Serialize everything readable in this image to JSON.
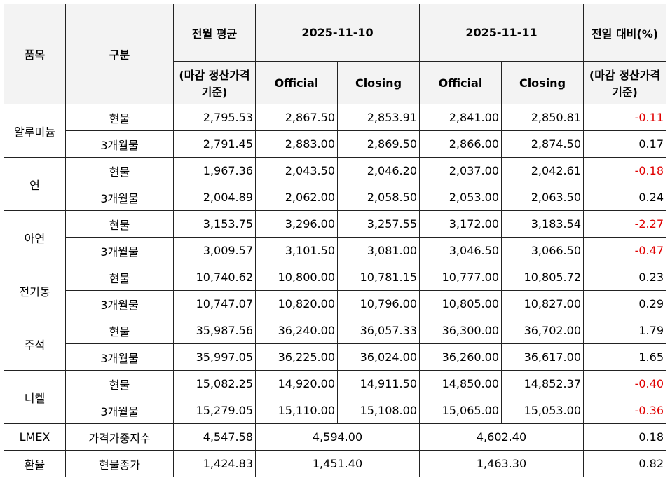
{
  "header": {
    "row1": [
      "품목",
      "구분",
      "전월 평균",
      "2025-11-10",
      "2025-11-11",
      "전일 대비(%)"
    ],
    "row2": [
      "(마감 정산가격 기준)",
      "Official",
      "Closing",
      "Official",
      "Closing",
      "(마감 정산가격 기준)"
    ]
  },
  "table": {
    "groups": [
      {
        "item": "알루미늄",
        "rows": [
          [
            "현물",
            "2,795.53",
            "2,867.50",
            "2,853.91",
            "2,841.00",
            "2,850.81",
            "-0.11"
          ],
          [
            "3개월물",
            "2,791.45",
            "2,883.00",
            "2,869.50",
            "2,866.00",
            "2,874.50",
            "0.17"
          ]
        ]
      },
      {
        "item": "연",
        "rows": [
          [
            "현물",
            "1,967.36",
            "2,043.50",
            "2,046.20",
            "2,037.00",
            "2,042.61",
            "-0.18"
          ],
          [
            "3개월물",
            "2,004.89",
            "2,062.00",
            "2,058.50",
            "2,053.00",
            "2,063.50",
            "0.24"
          ]
        ]
      },
      {
        "item": "아연",
        "rows": [
          [
            "현물",
            "3,153.75",
            "3,296.00",
            "3,257.55",
            "3,172.00",
            "3,183.54",
            "-2.27"
          ],
          [
            "3개월물",
            "3,009.57",
            "3,101.50",
            "3,081.00",
            "3,046.50",
            "3,066.50",
            "-0.47"
          ]
        ]
      },
      {
        "item": "전기동",
        "rows": [
          [
            "현물",
            "10,740.62",
            "10,800.00",
            "10,781.15",
            "10,777.00",
            "10,805.72",
            "0.23"
          ],
          [
            "3개월물",
            "10,747.07",
            "10,820.00",
            "10,796.00",
            "10,805.00",
            "10,827.00",
            "0.29"
          ]
        ]
      },
      {
        "item": "주석",
        "rows": [
          [
            "현물",
            "35,987.56",
            "36,240.00",
            "36,057.33",
            "36,300.00",
            "36,702.00",
            "1.79"
          ],
          [
            "3개월물",
            "35,997.05",
            "36,225.00",
            "36,024.00",
            "36,260.00",
            "36,617.00",
            "1.65"
          ]
        ]
      },
      {
        "item": "니켈",
        "rows": [
          [
            "현물",
            "15,082.25",
            "14,920.00",
            "14,911.50",
            "14,850.00",
            "14,852.37",
            "-0.40"
          ],
          [
            "3개월물",
            "15,279.05",
            "15,110.00",
            "15,108.00",
            "15,065.00",
            "15,053.00",
            "-0.36"
          ]
        ]
      }
    ],
    "footer_rows": [
      {
        "item": "LMEX",
        "sub": "가격가중지수",
        "values": [
          "4,547.58",
          "4,594.00",
          "4,602.40",
          "0.18"
        ]
      },
      {
        "item": "환율",
        "sub": "현물종가",
        "values": [
          "1,424.83",
          "1,451.40",
          "1,463.30",
          "0.82"
        ]
      }
    ]
  }
}
